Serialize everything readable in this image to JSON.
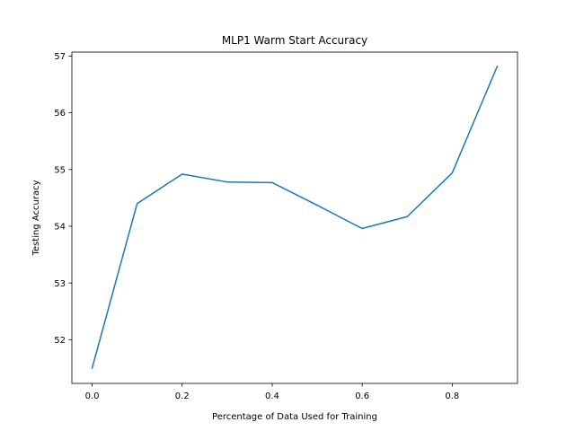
{
  "chart_data": {
    "type": "line",
    "title": "MLP1 Warm Start Accuracy",
    "xlabel": "Percentage of Data Used for Training",
    "ylabel": "Testing Accuracy",
    "xlim": [
      -0.045,
      0.945
    ],
    "ylim": [
      51.23,
      57.07
    ],
    "x_ticks": [
      0.0,
      0.2,
      0.4,
      0.6,
      0.8
    ],
    "x_tick_labels": [
      "0.0",
      "0.2",
      "0.4",
      "0.6",
      "0.8"
    ],
    "y_ticks": [
      52,
      53,
      54,
      55,
      56,
      57
    ],
    "y_tick_labels": [
      "52",
      "53",
      "54",
      "55",
      "56",
      "57"
    ],
    "grid": false,
    "legend": "none",
    "series": [
      {
        "color": "#1f77b4",
        "x": [
          0.0,
          0.1,
          0.2,
          0.3,
          0.4,
          0.5,
          0.6,
          0.7,
          0.8,
          0.9
        ],
        "y": [
          51.5,
          54.4,
          54.92,
          54.78,
          54.77,
          54.37,
          53.96,
          54.17,
          54.94,
          56.82
        ]
      }
    ]
  }
}
